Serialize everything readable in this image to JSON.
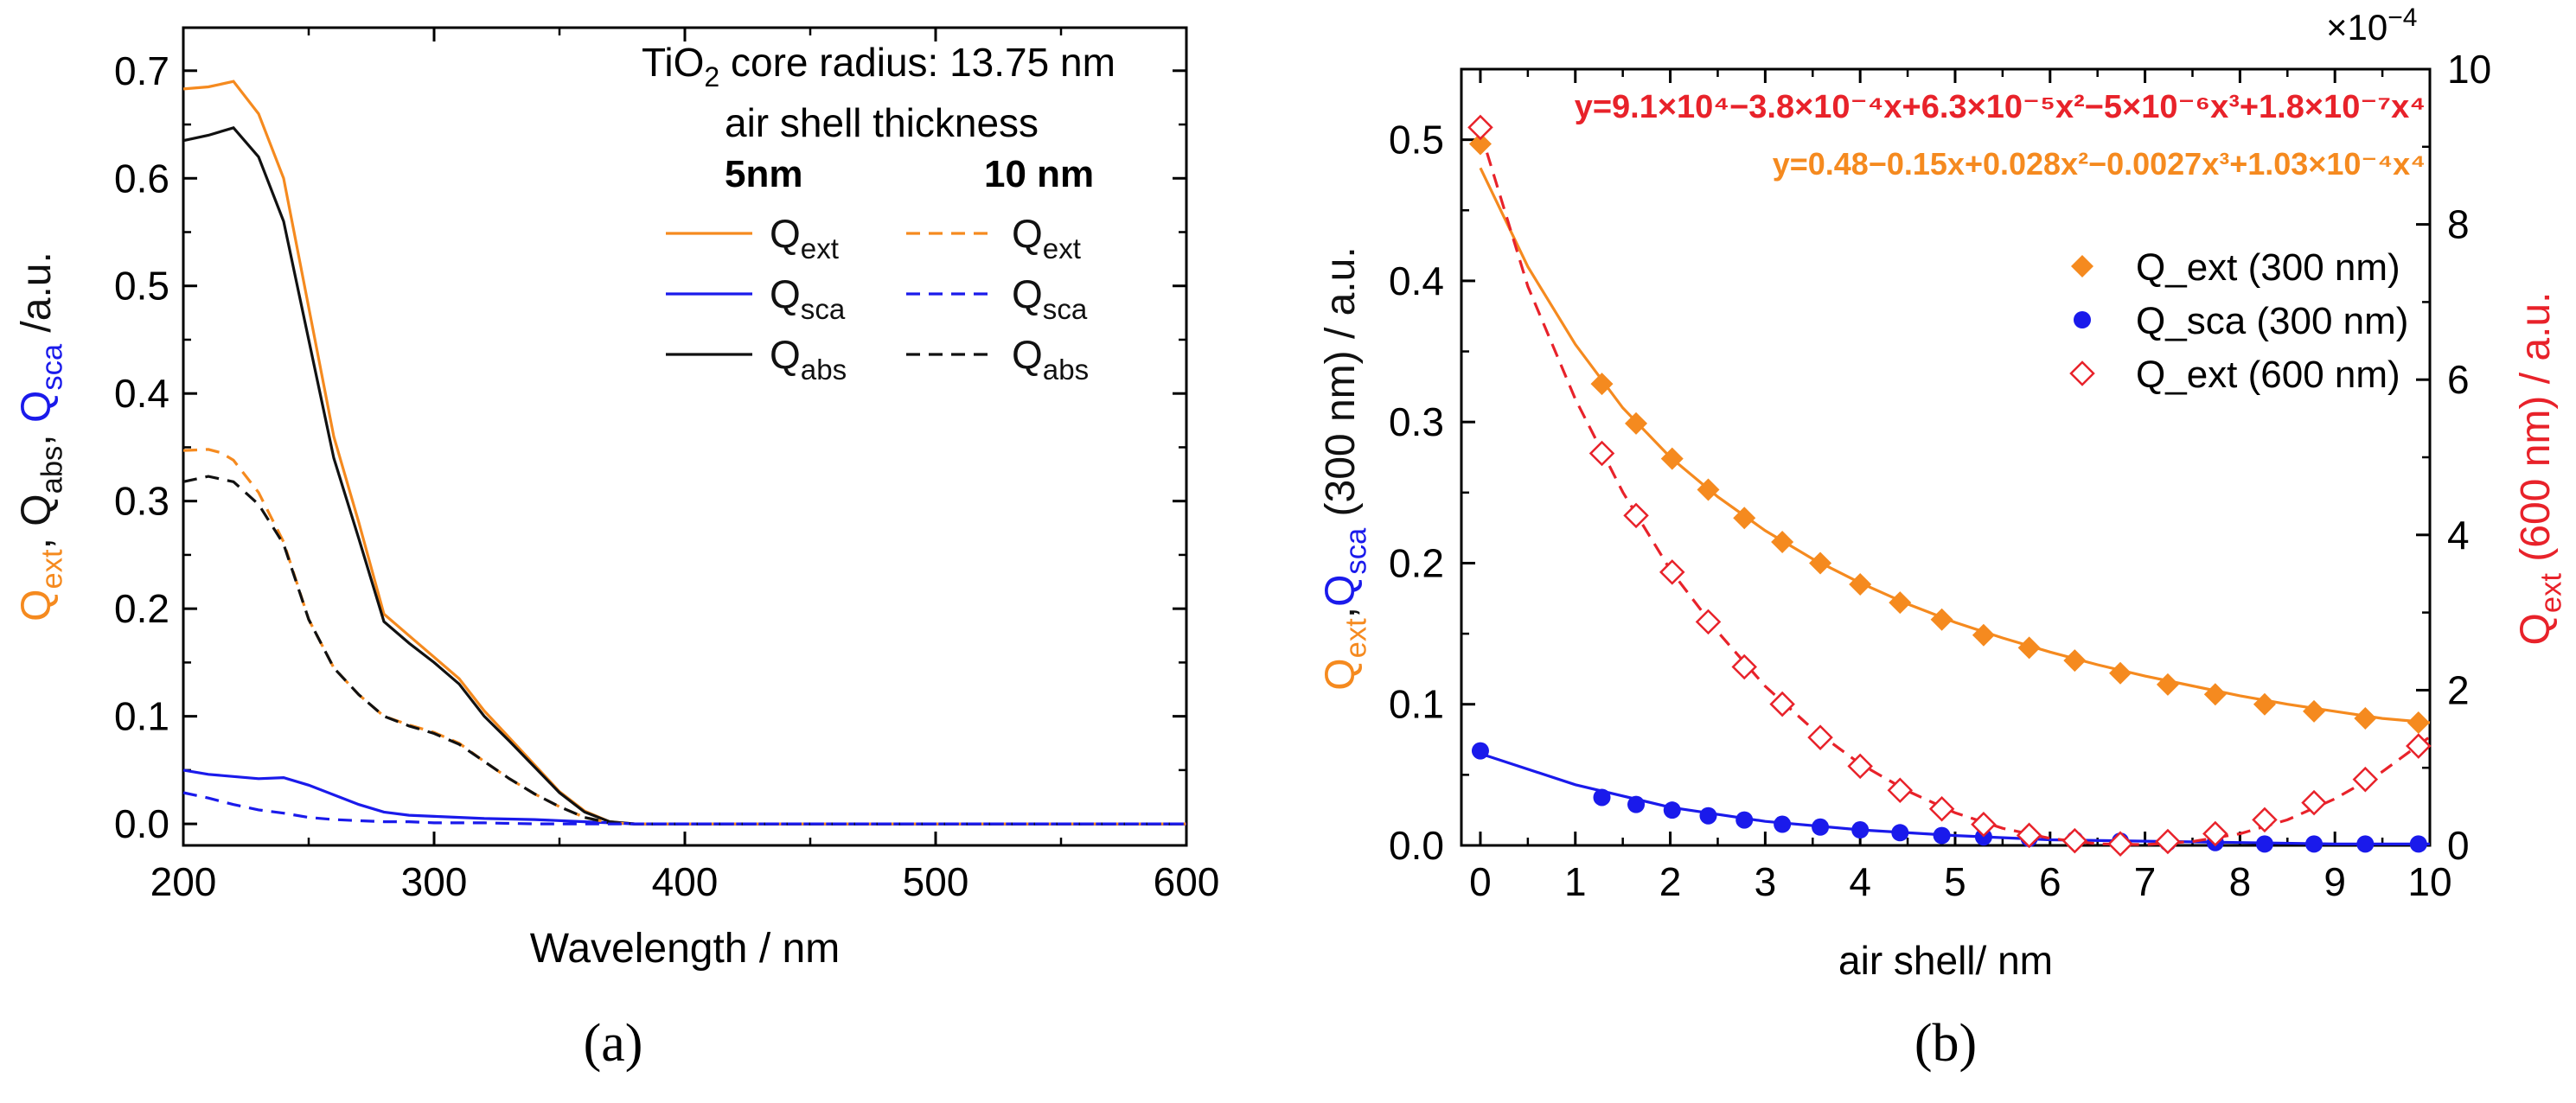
{
  "colors": {
    "ext": "#f58a1f",
    "sca": "#1a1aeb",
    "abs": "#111111",
    "ext600": "#e8222a",
    "axis": "#000000"
  },
  "chart_data": [
    {
      "type": "line",
      "caption": "(a)",
      "xlabel": "Wavelength / nm",
      "ylabel_parts": [
        {
          "text": "Q",
          "color": "ext"
        },
        {
          "text": "ext",
          "sub": true,
          "color": "ext"
        },
        {
          "text": ", ",
          "color": "abs"
        },
        {
          "text": "Q",
          "color": "abs"
        },
        {
          "text": "abs",
          "sub": true,
          "color": "abs"
        },
        {
          "text": ", ",
          "color": "abs"
        },
        {
          "text": "Q",
          "color": "sca"
        },
        {
          "text": "sca",
          "sub": true,
          "color": "sca"
        },
        {
          "text": " /a.u.",
          "color": "abs"
        }
      ],
      "xlim": [
        200,
        600
      ],
      "ylim": [
        -0.02,
        0.74
      ],
      "xticks": [
        200,
        300,
        400,
        500,
        600
      ],
      "xtick_labels": [
        "200",
        "300",
        "400",
        "500",
        "600"
      ],
      "yticks": [
        0.0,
        0.1,
        0.2,
        0.3,
        0.4,
        0.5,
        0.6,
        0.7
      ],
      "ytick_labels": [
        "0.0",
        "0.1",
        "0.2",
        "0.3",
        "0.4",
        "0.5",
        "0.6",
        "0.7"
      ],
      "annotation": {
        "core_prefix": "TiO",
        "core_sub": "2",
        "core_suffix": " core radius: 13.75 nm",
        "shell": "air shell thickness"
      },
      "legend": {
        "col_5nm": "5nm",
        "col_10nm": "10 nm",
        "entries": [
          {
            "base": "Q",
            "sub": "ext",
            "color": "ext"
          },
          {
            "base": "Q",
            "sub": "sca",
            "color": "sca"
          },
          {
            "base": "Q",
            "sub": "abs",
            "color": "abs"
          }
        ]
      },
      "series": [
        {
          "label_key": "ext_5nm",
          "color": "ext",
          "dash": false,
          "x": [
            200,
            210,
            220,
            230,
            240,
            250,
            260,
            270,
            280,
            290,
            300,
            310,
            320,
            330,
            340,
            350,
            360,
            370,
            380,
            400,
            450,
            500,
            550,
            600
          ],
          "y": [
            0.683,
            0.685,
            0.69,
            0.66,
            0.6,
            0.48,
            0.36,
            0.28,
            0.195,
            0.175,
            0.155,
            0.135,
            0.105,
            0.08,
            0.055,
            0.03,
            0.012,
            0.002,
            0.0,
            0.0,
            0.0,
            0.0,
            0.0,
            0.0
          ]
        },
        {
          "label_key": "abs_5nm",
          "color": "abs",
          "dash": false,
          "x": [
            200,
            210,
            220,
            230,
            240,
            250,
            260,
            270,
            280,
            290,
            300,
            310,
            320,
            330,
            340,
            350,
            360,
            370,
            380,
            400,
            450,
            500,
            550,
            600
          ],
          "y": [
            0.635,
            0.64,
            0.647,
            0.62,
            0.56,
            0.45,
            0.34,
            0.265,
            0.188,
            0.168,
            0.15,
            0.13,
            0.1,
            0.077,
            0.053,
            0.029,
            0.011,
            0.002,
            0.0,
            0.0,
            0.0,
            0.0,
            0.0,
            0.0
          ]
        },
        {
          "label_key": "sca_5nm",
          "color": "sca",
          "dash": false,
          "x": [
            200,
            210,
            220,
            230,
            240,
            250,
            260,
            270,
            280,
            290,
            300,
            320,
            340,
            360,
            370,
            380,
            400,
            450,
            500,
            550,
            600
          ],
          "y": [
            0.05,
            0.046,
            0.044,
            0.042,
            0.043,
            0.036,
            0.027,
            0.018,
            0.011,
            0.008,
            0.007,
            0.005,
            0.004,
            0.002,
            0.001,
            0.0,
            0.0,
            0.0,
            0.0,
            0.0,
            0.0
          ]
        },
        {
          "label_key": "ext_10nm",
          "color": "ext",
          "dash": true,
          "x": [
            200,
            210,
            215,
            220,
            230,
            240,
            250,
            260,
            270,
            280,
            290,
            300,
            310,
            320,
            330,
            340,
            350,
            360,
            370,
            380,
            400,
            450,
            500,
            550,
            600
          ],
          "y": [
            0.347,
            0.348,
            0.345,
            0.338,
            0.308,
            0.262,
            0.19,
            0.145,
            0.12,
            0.1,
            0.092,
            0.085,
            0.075,
            0.058,
            0.042,
            0.028,
            0.016,
            0.006,
            0.001,
            0.0,
            0.0,
            0.0,
            0.0,
            0.0,
            0.0
          ]
        },
        {
          "label_key": "abs_10nm",
          "color": "abs",
          "dash": true,
          "x": [
            200,
            210,
            220,
            230,
            240,
            250,
            260,
            270,
            280,
            290,
            300,
            310,
            320,
            330,
            340,
            350,
            360,
            370,
            380,
            400,
            450,
            500,
            550,
            600
          ],
          "y": [
            0.318,
            0.323,
            0.318,
            0.297,
            0.26,
            0.19,
            0.145,
            0.12,
            0.1,
            0.091,
            0.084,
            0.074,
            0.058,
            0.042,
            0.028,
            0.016,
            0.006,
            0.001,
            0.0,
            0.0,
            0.0,
            0.0,
            0.0,
            0.0
          ]
        },
        {
          "label_key": "sca_10nm",
          "color": "sca",
          "dash": true,
          "x": [
            200,
            210,
            220,
            230,
            240,
            250,
            260,
            270,
            280,
            290,
            300,
            320,
            340,
            360,
            380,
            400,
            450,
            500,
            550,
            600
          ],
          "y": [
            0.029,
            0.024,
            0.018,
            0.013,
            0.01,
            0.006,
            0.004,
            0.003,
            0.002,
            0.002,
            0.001,
            0.001,
            0.0,
            0.0,
            0.0,
            0.0,
            0.0,
            0.0,
            0.0,
            0.0
          ]
        }
      ]
    },
    {
      "type": "scatter",
      "caption": "(b)",
      "xlabel": "air shell/ nm",
      "ylabel_parts": [
        {
          "text": "Q",
          "color": "ext"
        },
        {
          "text": "ext",
          "sub": true,
          "color": "ext"
        },
        {
          "text": ",",
          "color": "abs"
        },
        {
          "text": "Q",
          "color": "sca"
        },
        {
          "text": "sca",
          "sub": true,
          "color": "sca"
        },
        {
          "text": " (300 nm) / a.u.",
          "color": "abs"
        }
      ],
      "y2label_parts": [
        {
          "text": "Q",
          "color": "ext600"
        },
        {
          "text": "ext",
          "sub": true,
          "color": "ext600"
        },
        {
          "text": " (600 nm) / a.u.",
          "color": "ext600"
        }
      ],
      "xlim": [
        -0.2,
        10.0
      ],
      "ylim": [
        0.0,
        0.55
      ],
      "y2lim": [
        0.0,
        10.0
      ],
      "y2_multiplier": "×10",
      "y2_multiplier_exp": "−4",
      "xticks": [
        0,
        1,
        2,
        3,
        4,
        5,
        6,
        7,
        8,
        9,
        10
      ],
      "xtick_labels": [
        "0",
        "1",
        "2",
        "3",
        "4",
        "5",
        "6",
        "7",
        "8",
        "9",
        "10"
      ],
      "yticks": [
        0.0,
        0.1,
        0.2,
        0.3,
        0.4,
        0.5
      ],
      "ytick_labels": [
        "0.0",
        "0.1",
        "0.2",
        "0.3",
        "0.4",
        "0.5"
      ],
      "y2ticks": [
        0,
        2,
        4,
        6,
        8,
        10
      ],
      "y2tick_labels": [
        "0",
        "2",
        "4",
        "6",
        "8",
        "10"
      ],
      "equations": [
        {
          "color": "ext600",
          "text": "y=9.1×10⁴−3.8×10⁻⁴x+6.3×10⁻⁵x²−5×10⁻⁶x³+1.8×10⁻⁷x⁴"
        },
        {
          "color": "ext",
          "text": "y=0.48−0.15x+0.028x²−0.0027x³+1.03×10⁻⁴x⁴"
        }
      ],
      "legend": [
        {
          "label": "Q_ext  (300 nm)",
          "color": "ext",
          "marker": "diamond-filled"
        },
        {
          "label": "Q_sca (300 nm)",
          "color": "sca",
          "marker": "circle-filled"
        },
        {
          "label": "Q_ext  (600 nm)",
          "color": "ext600",
          "marker": "diamond-open"
        }
      ],
      "series": [
        {
          "name": "Q_ext  (300 nm)",
          "axis": "left",
          "color": "ext",
          "marker": "diamond-filled",
          "x": [
            0,
            1.28,
            1.64,
            2.02,
            2.4,
            2.78,
            3.18,
            3.58,
            4.0,
            4.42,
            4.86,
            5.3,
            5.78,
            6.26,
            6.74,
            7.24,
            7.74,
            8.26,
            8.78,
            9.32,
            9.88
          ],
          "y": [
            0.497,
            0.327,
            0.299,
            0.274,
            0.252,
            0.232,
            0.215,
            0.2,
            0.185,
            0.172,
            0.16,
            0.149,
            0.14,
            0.131,
            0.122,
            0.114,
            0.107,
            0.1,
            0.095,
            0.09,
            0.087
          ]
        },
        {
          "name": "Q_sca (300 nm)",
          "axis": "left",
          "color": "sca",
          "marker": "circle-filled",
          "x": [
            0,
            1.28,
            1.64,
            2.02,
            2.4,
            2.78,
            3.18,
            3.58,
            4.0,
            4.42,
            4.86,
            5.3,
            5.78,
            6.26,
            6.74,
            7.24,
            7.74,
            8.26,
            8.78,
            9.32,
            9.88
          ],
          "y": [
            0.067,
            0.034,
            0.029,
            0.025,
            0.021,
            0.018,
            0.015,
            0.013,
            0.011,
            0.009,
            0.007,
            0.006,
            0.005,
            0.004,
            0.003,
            0.002,
            0.002,
            0.001,
            0.001,
            0.001,
            0.001
          ]
        },
        {
          "name": "Q_ext  (600 nm)",
          "axis": "right",
          "color": "ext600",
          "marker": "diamond-open",
          "x": [
            0,
            1.28,
            1.64,
            2.02,
            2.4,
            2.78,
            3.18,
            3.58,
            4.0,
            4.42,
            4.86,
            5.3,
            5.78,
            6.26,
            6.74,
            7.24,
            7.74,
            8.26,
            8.78,
            9.32,
            9.88
          ],
          "y": [
            9.25,
            5.05,
            4.25,
            3.52,
            2.88,
            2.3,
            1.82,
            1.39,
            1.02,
            0.71,
            0.47,
            0.27,
            0.13,
            0.06,
            0.02,
            0.05,
            0.15,
            0.33,
            0.55,
            0.85,
            1.28
          ]
        }
      ],
      "fits": [
        {
          "axis": "left",
          "color": "ext",
          "dash": false,
          "x": [
            0,
            0.5,
            1,
            1.5,
            2,
            2.5,
            3,
            3.5,
            4,
            4.5,
            5,
            5.5,
            6,
            6.5,
            7,
            7.5,
            8,
            8.5,
            9,
            9.5,
            10
          ],
          "y": [
            0.48,
            0.41,
            0.355,
            0.31,
            0.275,
            0.247,
            0.223,
            0.203,
            0.186,
            0.171,
            0.158,
            0.147,
            0.137,
            0.128,
            0.12,
            0.113,
            0.106,
            0.1,
            0.095,
            0.09,
            0.087
          ]
        },
        {
          "axis": "left",
          "color": "sca",
          "dash": false,
          "x": [
            0,
            1,
            2,
            3,
            4,
            5,
            6,
            7,
            8,
            9,
            10
          ],
          "y": [
            0.065,
            0.043,
            0.027,
            0.017,
            0.011,
            0.007,
            0.004,
            0.003,
            0.002,
            0.001,
            0.001
          ]
        },
        {
          "axis": "right",
          "color": "ext600",
          "dash": true,
          "x": [
            0,
            0.5,
            1,
            1.5,
            2,
            2.5,
            3,
            3.5,
            4,
            4.5,
            5,
            5.5,
            6,
            6.5,
            7,
            7.5,
            8,
            8.5,
            9,
            9.5,
            10
          ],
          "y": [
            9.2,
            7.2,
            5.75,
            4.55,
            3.55,
            2.75,
            2.05,
            1.5,
            1.05,
            0.7,
            0.42,
            0.22,
            0.09,
            0.02,
            0.01,
            0.05,
            0.15,
            0.33,
            0.6,
            0.95,
            1.4
          ]
        }
      ]
    }
  ]
}
